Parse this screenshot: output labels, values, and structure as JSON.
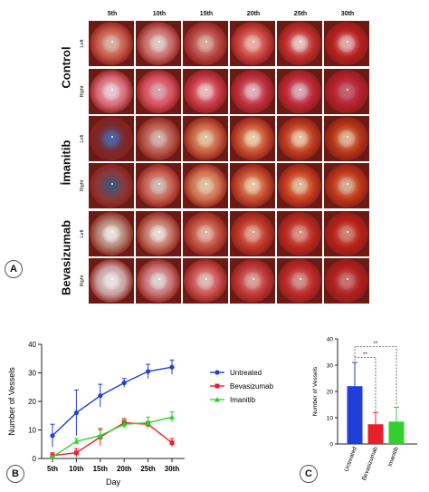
{
  "panel_a": {
    "letter": "A",
    "days": [
      "5th",
      "10th",
      "15th",
      "20th",
      "25th",
      "30th"
    ],
    "groups": [
      {
        "name": "Control",
        "rows": [
          "Left",
          "Right"
        ]
      },
      {
        "name": "İmanitib",
        "rows": [
          "Left",
          "Right"
        ]
      },
      {
        "name": "Bevasizumab",
        "rows": [
          "Left",
          "Right"
        ]
      }
    ]
  },
  "panel_b": {
    "letter": "B"
  },
  "panel_c": {
    "letter": "C"
  },
  "colors": {
    "untreated": "#1f3fd8",
    "bevasizumab": "#e8202a",
    "imanitib": "#2fd02f"
  },
  "chart_data": [
    {
      "type": "line",
      "categories": [
        "5th",
        "10th",
        "15th",
        "20th",
        "25th",
        "30th"
      ],
      "xlabel": "Day",
      "ylabel": "Number of Vessels",
      "ylim": [
        0,
        40
      ],
      "yticks": [
        0,
        10,
        20,
        30,
        40
      ],
      "legend_position": "right",
      "grid": false,
      "series": [
        {
          "name": "Untreated",
          "color": "#1f3fd8",
          "marker": "circle",
          "values": [
            8,
            16,
            22,
            26.5,
            30.5,
            32
          ],
          "errors": [
            4,
            8,
            4,
            1.5,
            2.5,
            2.5
          ]
        },
        {
          "name": "Bevasizumab",
          "color": "#e8202a",
          "marker": "square",
          "values": [
            1,
            2,
            7.5,
            12.5,
            12,
            5.5
          ],
          "errors": [
            1,
            1.5,
            3,
            1.5,
            1,
            1.5
          ]
        },
        {
          "name": "Imanitib",
          "color": "#2fd02f",
          "marker": "triangle",
          "values": [
            0.5,
            6,
            8,
            12,
            12.5,
            14.5
          ],
          "errors": [
            0.5,
            1,
            2,
            1.5,
            2,
            1.8
          ]
        }
      ]
    },
    {
      "type": "bar",
      "categories": [
        "Untreated",
        "Bevasizumab",
        "Imanitib"
      ],
      "ylabel": "Number of Vessels",
      "ylim": [
        0,
        40
      ],
      "yticks": [
        0,
        10,
        20,
        30,
        40
      ],
      "values": [
        22,
        7.5,
        8.5
      ],
      "errors": [
        9,
        4.5,
        5.5
      ],
      "colors": [
        "#1f3fd8",
        "#e8202a",
        "#2fd02f"
      ],
      "annotations": [
        "**",
        "**"
      ]
    }
  ]
}
